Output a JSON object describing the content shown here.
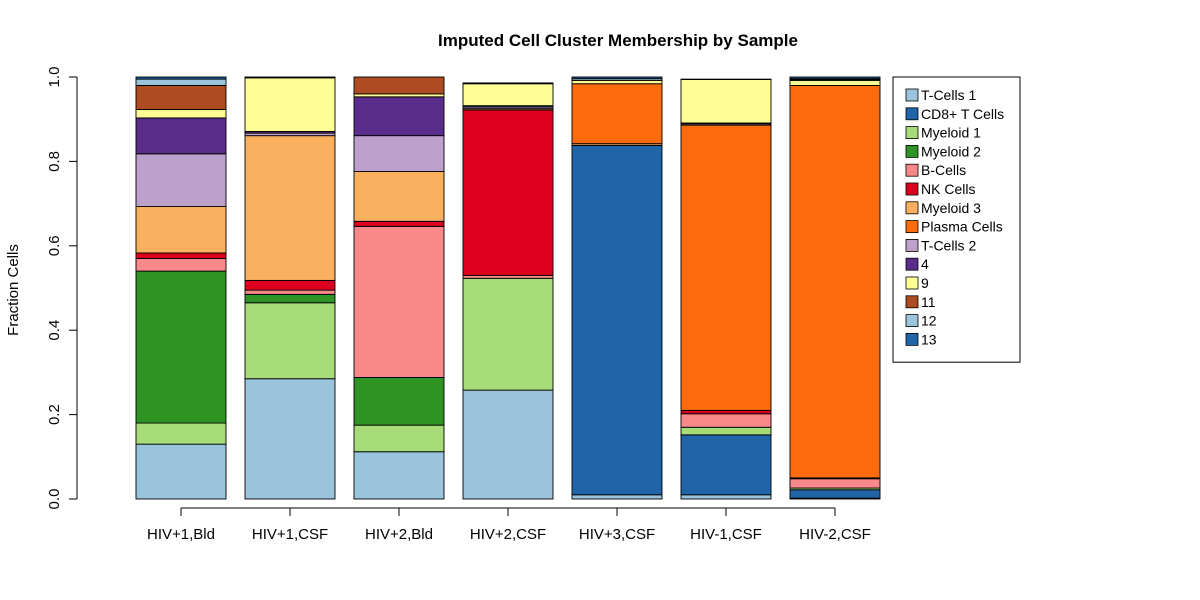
{
  "chart_data": {
    "type": "bar",
    "stacked": true,
    "title": "Imputed Cell Cluster Membership by Sample",
    "xlabel": "",
    "ylabel": "Fraction Cells",
    "ylim": [
      0,
      1
    ],
    "yticks": [
      "0.0",
      "0.2",
      "0.4",
      "0.6",
      "0.8",
      "1.0"
    ],
    "grid": false,
    "legend_position": "right",
    "categories": [
      "HIV+1,Bld",
      "HIV+1,CSF",
      "HIV+2,Bld",
      "HIV+2,CSF",
      "HIV+3,CSF",
      "HIV-1,CSF",
      "HIV-2,CSF"
    ],
    "series": [
      {
        "name": "T-Cells 1",
        "color": "#99c4dc",
        "values": [
          0.13,
          0.285,
          0.112,
          0.258,
          0.01,
          0.01,
          0.002
        ]
      },
      {
        "name": "CD8+ T Cells",
        "color": "#1f65a8",
        "values": [
          0.0,
          0.0,
          0.0,
          0.0,
          0.828,
          0.142,
          0.02
        ]
      },
      {
        "name": "Myeloid 1",
        "color": "#a8dc78",
        "values": [
          0.05,
          0.18,
          0.063,
          0.265,
          0.0,
          0.018,
          0.004
        ]
      },
      {
        "name": "Myeloid 2",
        "color": "#2f9324",
        "values": [
          0.36,
          0.02,
          0.113,
          0.0,
          0.0,
          0.0,
          0.0
        ]
      },
      {
        "name": "B-Cells",
        "color": "#f8888a",
        "values": [
          0.03,
          0.01,
          0.358,
          0.007,
          0.0,
          0.032,
          0.022
        ]
      },
      {
        "name": "NK Cells",
        "color": "#dc001e",
        "values": [
          0.013,
          0.023,
          0.012,
          0.392,
          0.0,
          0.008,
          0.002
        ]
      },
      {
        "name": "Myeloid 3",
        "color": "#fbb060",
        "values": [
          0.11,
          0.343,
          0.118,
          0.003,
          0.004,
          0.0,
          0.0
        ]
      },
      {
        "name": "Plasma Cells",
        "color": "#fc6c0c",
        "values": [
          0.0,
          0.0,
          0.0,
          0.0,
          0.142,
          0.676,
          0.93
        ]
      },
      {
        "name": "T-Cells 2",
        "color": "#bea0cc",
        "values": [
          0.125,
          0.006,
          0.085,
          0.004,
          0.0,
          0.003,
          0.0
        ]
      },
      {
        "name": "4",
        "color": "#5a2c8b",
        "values": [
          0.085,
          0.004,
          0.092,
          0.003,
          0.0,
          0.002,
          0.0
        ]
      },
      {
        "name": "9",
        "color": "#fefe94",
        "values": [
          0.02,
          0.127,
          0.007,
          0.052,
          0.008,
          0.103,
          0.012
        ]
      },
      {
        "name": "11",
        "color": "#ad4c22",
        "values": [
          0.057,
          0.002,
          0.04,
          0.002,
          0.0,
          0.001,
          0.002
        ]
      },
      {
        "name": "12",
        "color": "#99c4dc",
        "values": [
          0.015,
          0.0,
          0.0,
          0.0,
          0.004,
          0.0,
          0.002
        ]
      },
      {
        "name": "13",
        "color": "#1f65a8",
        "values": [
          0.005,
          0.0,
          0.0,
          0.0,
          0.004,
          0.0,
          0.004
        ]
      }
    ]
  }
}
